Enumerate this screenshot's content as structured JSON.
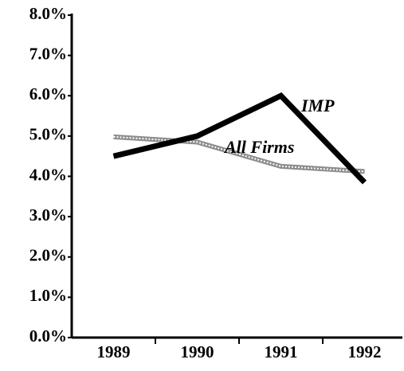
{
  "chart_data": {
    "type": "line",
    "categories": [
      "1989",
      "1990",
      "1991",
      "1992"
    ],
    "series": [
      {
        "name": "IMP",
        "color": "#000000",
        "values": [
          4.5,
          5.0,
          6.0,
          3.85
        ]
      },
      {
        "name": "All Firms",
        "color": "#8c8c8c",
        "values": [
          4.98,
          4.85,
          4.25,
          4.12
        ]
      }
    ],
    "ylim": [
      0,
      8
    ],
    "yticks": [
      {
        "value": 0,
        "label": "0.0%"
      },
      {
        "value": 1,
        "label": "1.0%"
      },
      {
        "value": 2,
        "label": "2.0%"
      },
      {
        "value": 3,
        "label": "3.0%"
      },
      {
        "value": 4,
        "label": "4.0%"
      },
      {
        "value": 5,
        "label": "5.0%"
      },
      {
        "value": 6,
        "label": "6.0%"
      },
      {
        "value": 7,
        "label": "7.0%"
      },
      {
        "value": 8,
        "label": "8.0%"
      }
    ],
    "grid": false
  }
}
